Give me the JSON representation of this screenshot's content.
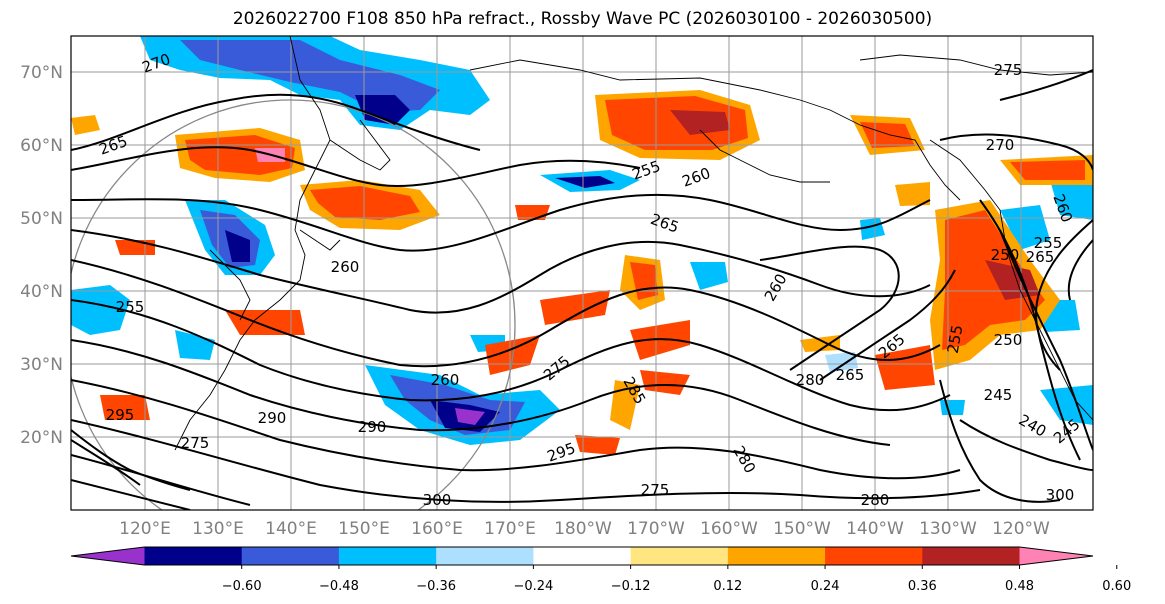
{
  "title": "2026022700 F108 850 hPa refract., Rossby Wave PC (2026030100 - 2026030500)",
  "map": {
    "lat_labels": [
      "70°N",
      "60°N",
      "50°N",
      "40°N",
      "30°N",
      "20°N"
    ],
    "lon_labels": [
      "120°E",
      "130°E",
      "140°E",
      "150°E",
      "160°E",
      "170°E",
      "180°W",
      "170°W",
      "160°W",
      "150°W",
      "140°W",
      "130°W",
      "120°W"
    ],
    "contour_labels": [
      "270",
      "265",
      "275",
      "270",
      "255",
      "260",
      "265",
      "260",
      "260",
      "250",
      "255",
      "265",
      "260",
      "255",
      "250",
      "245",
      "240",
      "245",
      "260",
      "275",
      "285",
      "290",
      "290",
      "295",
      "300",
      "280",
      "275",
      "280",
      "280",
      "300",
      "255",
      "275",
      "295",
      "265",
      "265"
    ]
  },
  "colorbar": {
    "tick_labels": [
      "−0.60",
      "−0.48",
      "−0.36",
      "−0.24",
      "−0.12",
      "0.12",
      "0.24",
      "0.36",
      "0.48",
      "0.60"
    ],
    "colors": [
      "#9932CC",
      "#00008B",
      "#3A5BD9",
      "#00BFFF",
      "#ADDFFF",
      "#FFFFFF",
      "#FFE680",
      "#FFA500",
      "#FF4500",
      "#B22222",
      "#FF82B4"
    ]
  }
}
